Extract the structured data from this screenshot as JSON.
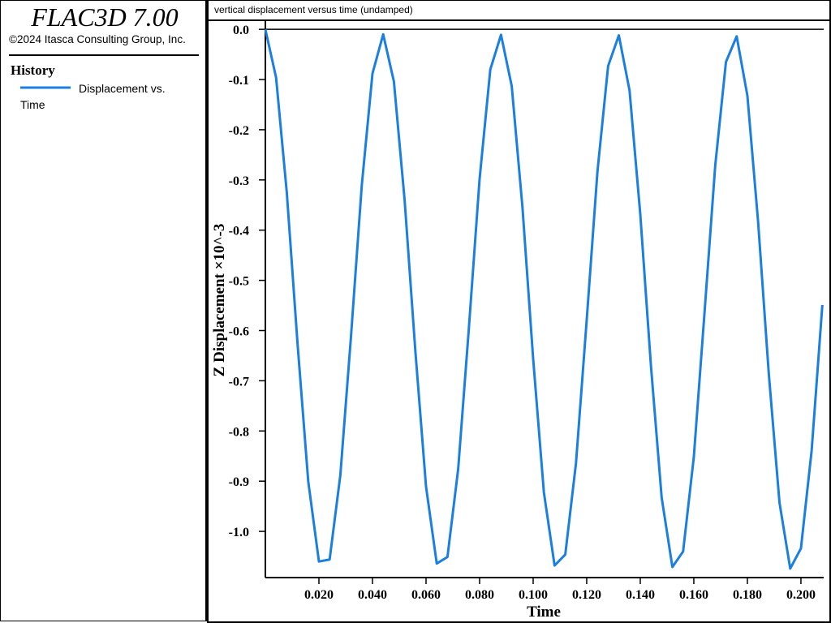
{
  "app": {
    "title": "FLAC3D 7.00",
    "copyright": "©2024 Itasca Consulting Group, Inc.",
    "legend_heading": "History"
  },
  "chart_data": {
    "type": "line",
    "title": "vertical displacement versus time (undamped)",
    "x_label": "Time",
    "y_label": "Z Displacement ×10^-3",
    "x": [
      0,
      0.004,
      0.008,
      0.012,
      0.016,
      0.02,
      0.024,
      0.028,
      0.032,
      0.036,
      0.04,
      0.044,
      0.048,
      0.052,
      0.056,
      0.06,
      0.064,
      0.068,
      0.072,
      0.076,
      0.08,
      0.084,
      0.088,
      0.092,
      0.096,
      0.1,
      0.104,
      0.108,
      0.112,
      0.116,
      0.12,
      0.124,
      0.128,
      0.132,
      0.136,
      0.14,
      0.144,
      0.148,
      0.152,
      0.156,
      0.16,
      0.164,
      0.168,
      0.172,
      0.176,
      0.18,
      0.184,
      0.188,
      0.192,
      0.196,
      0.2,
      0.204,
      0.208
    ],
    "series": [
      {
        "name": "Displacement vs. Time",
        "color": "#1a7fe0",
        "values": [
          0,
          -0.096,
          -0.325,
          -0.625,
          -0.9,
          -1.06,
          -1.056,
          -0.888,
          -0.61,
          -0.311,
          -0.088,
          -0.01,
          -0.104,
          -0.34,
          -0.64,
          -0.911,
          -1.064,
          -1.051,
          -0.876,
          -0.595,
          -0.298,
          -0.08,
          -0.011,
          -0.113,
          -0.354,
          -0.656,
          -0.922,
          -1.068,
          -1.046,
          -0.864,
          -0.579,
          -0.284,
          -0.073,
          -0.012,
          -0.122,
          -0.368,
          -0.671,
          -0.933,
          -1.071,
          -1.04,
          -0.852,
          -0.564,
          -0.271,
          -0.065,
          -0.014,
          -0.132,
          -0.383,
          -0.686,
          -0.943,
          -1.074,
          -1.034,
          -0.839,
          -0.549
        ]
      }
    ],
    "xlim": [
      0,
      0.2085
    ],
    "ylim": [
      -1.092,
      0.018
    ],
    "xticks": [
      {
        "value": 0.02,
        "label": "0.020"
      },
      {
        "value": 0.04,
        "label": "0.040"
      },
      {
        "value": 0.06,
        "label": "0.060"
      },
      {
        "value": 0.08,
        "label": "0.080"
      },
      {
        "value": 0.1,
        "label": "0.100"
      },
      {
        "value": 0.12,
        "label": "0.120"
      },
      {
        "value": 0.14,
        "label": "0.140"
      },
      {
        "value": 0.16,
        "label": "0.160"
      },
      {
        "value": 0.18,
        "label": "0.180"
      },
      {
        "value": 0.2,
        "label": "0.200"
      }
    ],
    "yticks": [
      {
        "value": 0,
        "label": "0.0"
      },
      -0.1,
      -0.2,
      -0.3,
      -0.4,
      -0.5,
      -0.6,
      -0.7,
      -0.8,
      -0.9,
      {
        "value": -1,
        "label": "-1.0"
      }
    ]
  }
}
